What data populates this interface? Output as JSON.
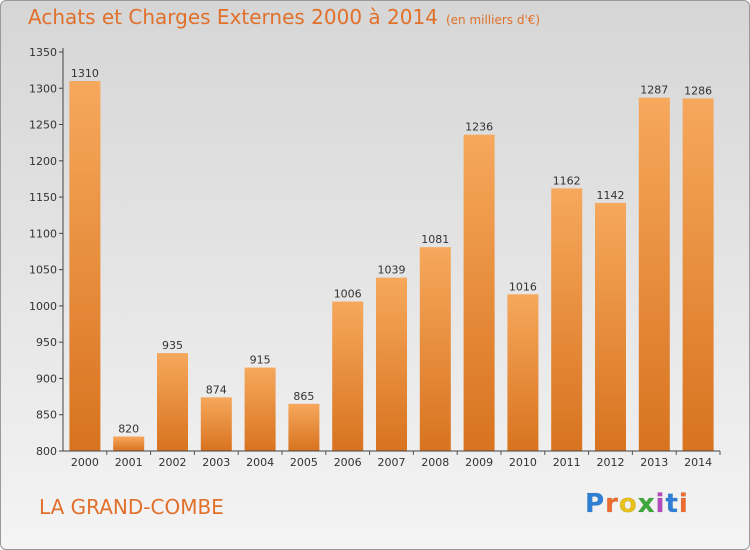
{
  "title": "Achats et Charges Externes 2000 à 2014",
  "subtitle": "(en milliers d'€)",
  "commune": "LA GRAND-COMBE",
  "logo": {
    "text": "Proxiti",
    "colors": [
      "#2f7fd6",
      "#ef6b2f",
      "#e8c21a",
      "#3fa83c",
      "#b549c1",
      "#2f7fd6",
      "#ef6b2f"
    ]
  },
  "colors": {
    "bar_light": "#f6a85c",
    "bar_dark": "#d8731f",
    "title": "#e0702a"
  },
  "chart_data": {
    "type": "bar",
    "categories": [
      "2000",
      "2001",
      "2002",
      "2003",
      "2004",
      "2005",
      "2006",
      "2007",
      "2008",
      "2009",
      "2010",
      "2011",
      "2012",
      "2013",
      "2014"
    ],
    "values": [
      1310,
      820,
      935,
      874,
      915,
      865,
      1006,
      1039,
      1081,
      1236,
      1016,
      1162,
      1142,
      1287,
      1286
    ],
    "ylim": [
      800,
      1350
    ],
    "yticks": [
      800,
      850,
      900,
      950,
      1000,
      1050,
      1100,
      1150,
      1200,
      1250,
      1300,
      1350
    ],
    "grid": false
  }
}
